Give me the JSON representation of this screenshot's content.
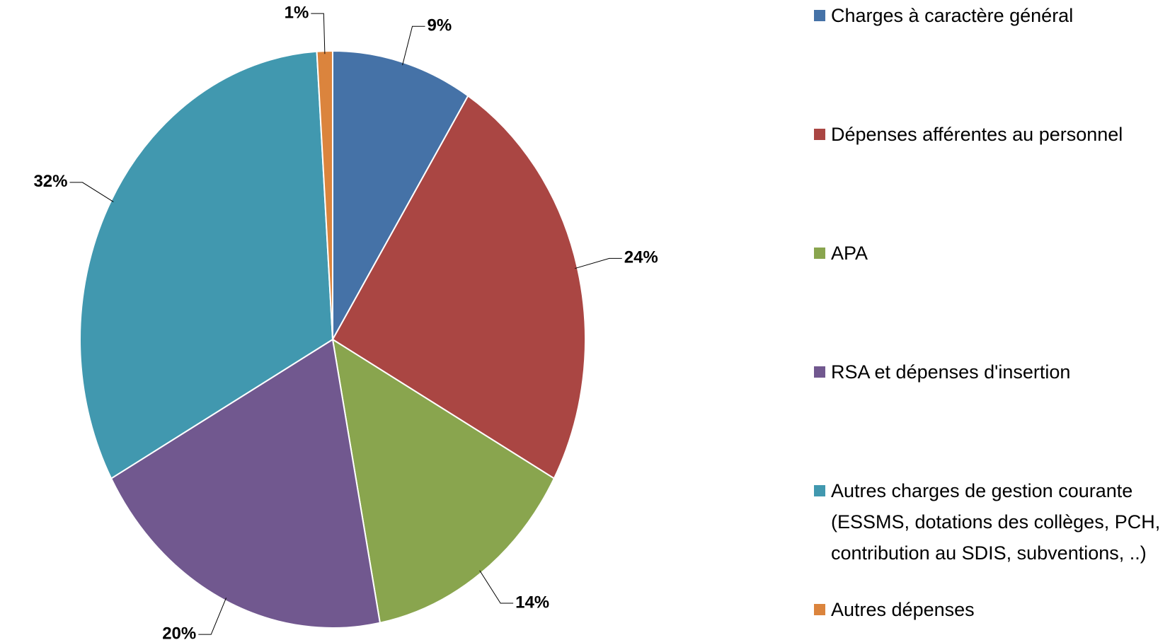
{
  "chart_data": {
    "type": "pie",
    "categories": [
      "Charges à caractère général",
      "Dépenses afférentes au personnel",
      "APA",
      "RSA et dépenses d'insertion",
      "Autres charges de gestion courante (ESSMS, dotations des collèges, PCH, contribution au SDIS, subventions, ..)",
      "Autres dépenses"
    ],
    "values": [
      9,
      24,
      14,
      20,
      32,
      1
    ],
    "value_labels": [
      "9%",
      "24%",
      "14%",
      "20%",
      "32%",
      "1%"
    ],
    "colors": [
      "#4572a7",
      "#aa4643",
      "#89a54e",
      "#71588f",
      "#4198af",
      "#db843d"
    ],
    "legend": "right"
  }
}
